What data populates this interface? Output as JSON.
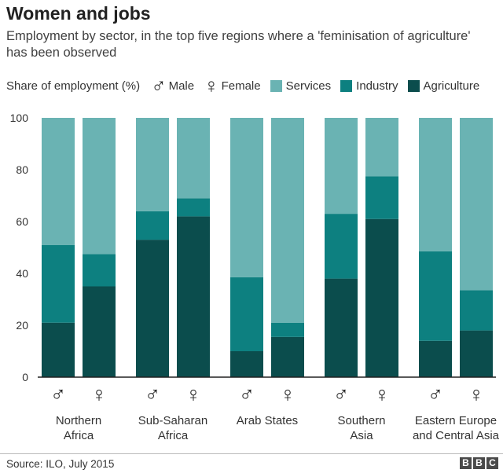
{
  "title": "Women and jobs",
  "subtitle": "Employment by sector, in the top five regions where a 'feminisation of agriculture' has been observed",
  "legend": {
    "label": "Share of employment (%)",
    "male_symbol": "♂",
    "male_label": "Male",
    "female_symbol": "♀",
    "female_label": "Female",
    "services_label": "Services",
    "industry_label": "Industry",
    "agriculture_label": "Agriculture"
  },
  "colors": {
    "services": "#6ab3b3",
    "industry": "#0d8080",
    "agriculture": "#0b4d4d",
    "axis": "#222222",
    "grid": "#dddddd"
  },
  "chart_data": {
    "type": "bar",
    "stacked": true,
    "ylim": [
      0,
      100
    ],
    "yticks": [
      0,
      20,
      40,
      60,
      80,
      100
    ],
    "ylabel": "Share of employment (%)",
    "series_names": [
      "Agriculture",
      "Industry",
      "Services"
    ],
    "groups": [
      {
        "label": [
          "Northern",
          "Africa"
        ],
        "bars": [
          {
            "sex": "male",
            "symbol": "♂",
            "agriculture": 21,
            "industry": 30,
            "services": 49
          },
          {
            "sex": "female",
            "symbol": "♀",
            "agriculture": 35,
            "industry": 12.5,
            "services": 52.5
          }
        ]
      },
      {
        "label": [
          "Sub-Saharan",
          "Africa"
        ],
        "bars": [
          {
            "sex": "male",
            "symbol": "♂",
            "agriculture": 53,
            "industry": 11,
            "services": 36
          },
          {
            "sex": "female",
            "symbol": "♀",
            "agriculture": 62,
            "industry": 7,
            "services": 31
          }
        ]
      },
      {
        "label": [
          "Arab States"
        ],
        "bars": [
          {
            "sex": "male",
            "symbol": "♂",
            "agriculture": 10,
            "industry": 28.5,
            "services": 61.5
          },
          {
            "sex": "female",
            "symbol": "♀",
            "agriculture": 15.5,
            "industry": 5.5,
            "services": 79
          }
        ]
      },
      {
        "label": [
          "Southern",
          "Asia"
        ],
        "bars": [
          {
            "sex": "male",
            "symbol": "♂",
            "agriculture": 38,
            "industry": 25,
            "services": 37
          },
          {
            "sex": "female",
            "symbol": "♀",
            "agriculture": 61,
            "industry": 16.5,
            "services": 22.5
          }
        ]
      },
      {
        "label": [
          "Eastern Europe",
          "and Central Asia"
        ],
        "bars": [
          {
            "sex": "male",
            "symbol": "♂",
            "agriculture": 14,
            "industry": 34.5,
            "services": 51.5
          },
          {
            "sex": "female",
            "symbol": "♀",
            "agriculture": 18,
            "industry": 15.5,
            "services": 66.5
          }
        ]
      }
    ]
  },
  "footer": {
    "source": "Source: ILO, July 2015",
    "logo_letters": [
      "B",
      "B",
      "C"
    ]
  }
}
